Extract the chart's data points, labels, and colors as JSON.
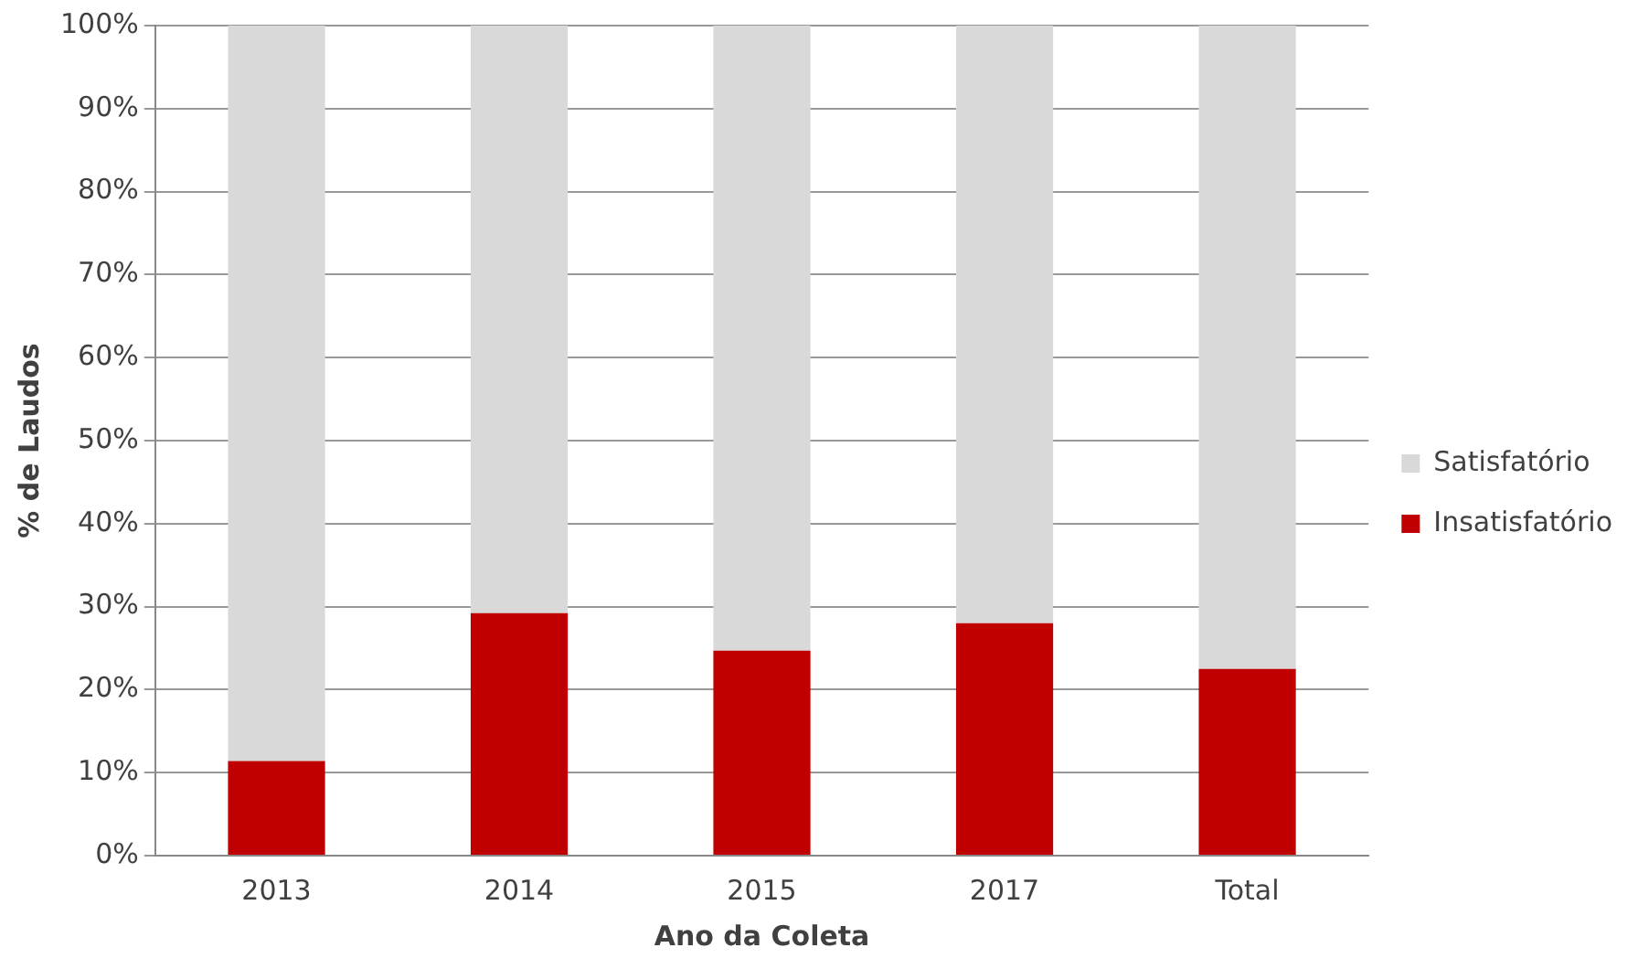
{
  "chart_data": {
    "type": "bar",
    "stacked": true,
    "xlabel": "Ano da Coleta",
    "ylabel": "% de Laudos",
    "categories": [
      "2013",
      "2014",
      "2015",
      "2017",
      "Total"
    ],
    "series": [
      {
        "name": "Insatisfatório",
        "color": "#c00000",
        "values": [
          11.4,
          29.2,
          24.7,
          28.0,
          22.5
        ]
      },
      {
        "name": "Satisfatório",
        "color": "#d9d9d9",
        "values": [
          88.6,
          70.8,
          75.3,
          72.0,
          77.5
        ]
      }
    ],
    "ylim": [
      0,
      100
    ],
    "yticks": [
      {
        "value": 0,
        "label": "0%"
      },
      {
        "value": 10,
        "label": "10%"
      },
      {
        "value": 20,
        "label": "20%"
      },
      {
        "value": 30,
        "label": "30%"
      },
      {
        "value": 40,
        "label": "40%"
      },
      {
        "value": 50,
        "label": "50%"
      },
      {
        "value": 60,
        "label": "60%"
      },
      {
        "value": 70,
        "label": "70%"
      },
      {
        "value": 80,
        "label": "80%"
      },
      {
        "value": 90,
        "label": "90%"
      },
      {
        "value": 100,
        "label": "100%"
      }
    ],
    "grid": "y",
    "legend": "right"
  }
}
